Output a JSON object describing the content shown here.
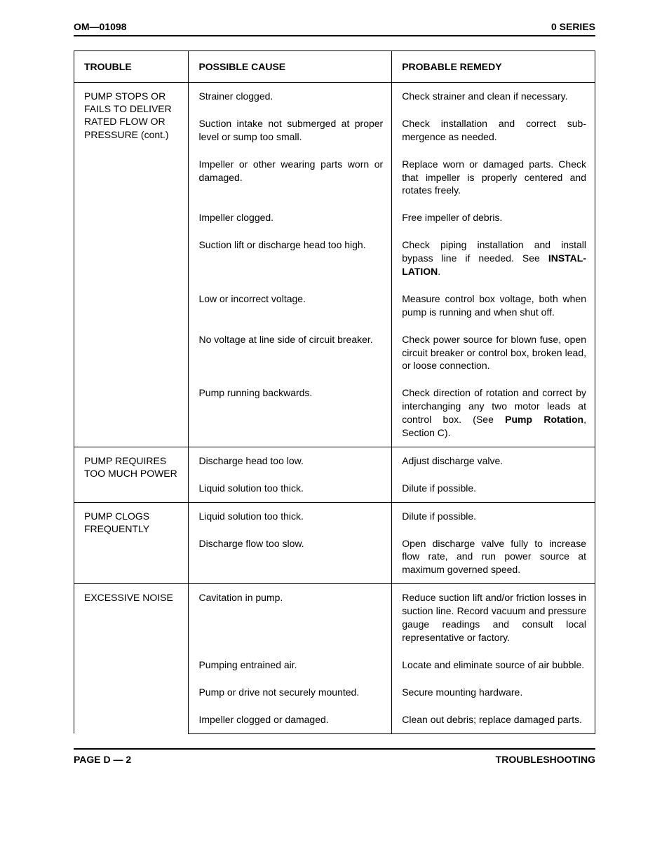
{
  "header": {
    "left": "OM—01098",
    "right": "0 SERIES"
  },
  "footer": {
    "left": "PAGE D — 2",
    "right": "TROUBLESHOOTING"
  },
  "colors": {
    "text": "#000000",
    "background": "#ffffff",
    "rule": "#000000"
  },
  "typography": {
    "base_fontsize_pt": 10.5,
    "header_fontsize_pt": 10.5,
    "font_family": "Arial"
  },
  "table": {
    "column_widths_pct": [
      22,
      39,
      39
    ],
    "headers": {
      "trouble": "TROUBLE",
      "cause": "POSSIBLE CAUSE",
      "remedy": "PROBABLE REMEDY"
    },
    "sections": [
      {
        "trouble": "PUMP STOPS OR FAILS TO DELIVER RATED FLOW OR PRESSURE (cont.)",
        "rows": [
          {
            "cause": "Strainer clogged.",
            "remedy": "Check strainer and clean if neces­sary."
          },
          {
            "cause": "Suction intake not submerged at proper level or sump too small.",
            "remedy": "Check installation and correct sub­mergence as needed."
          },
          {
            "cause": "Impeller or other wearing parts worn or damaged.",
            "remedy": "Replace worn or damaged parts. Check that impeller is properly centered and rotates freely."
          },
          {
            "cause": "Impeller clogged.",
            "remedy": "Free impeller of debris."
          },
          {
            "cause": "Suction lift or discharge head too high.",
            "remedy_pre": "Check piping installation and install bypass line if needed. See ",
            "remedy_bold": "INSTAL­LATION",
            "remedy_post": "."
          },
          {
            "cause": "Low or incorrect voltage.",
            "remedy": "Measure control box voltage, both when pump is running and when shut off."
          },
          {
            "cause": "No voltage at line side of circuit breaker.",
            "remedy": "Check power source for blown fuse, open circuit breaker or control box, broken lead, or loose connection."
          },
          {
            "cause": "Pump running backwards.",
            "remedy_pre": "Check direction of rotation and cor­rect by interchanging any two motor leads at control box. (See ",
            "remedy_bold": "Pump Ro­tation",
            "remedy_post": ", Section C)."
          }
        ]
      },
      {
        "trouble": "PUMP REQUIRES TOO MUCH POWER",
        "rows": [
          {
            "cause": "Discharge head too low.",
            "remedy": "Adjust discharge valve."
          },
          {
            "cause": "Liquid solution too thick.",
            "remedy": "Dilute if possible."
          }
        ]
      },
      {
        "trouble": "PUMP CLOGS FREQUENTLY",
        "rows": [
          {
            "cause": "Liquid solution too thick.",
            "remedy": "Dilute if possible."
          },
          {
            "cause": "Discharge flow too slow.",
            "remedy": "Open discharge valve fully to in­crease flow rate, and run power source at maximum governed speed."
          }
        ]
      },
      {
        "trouble": "EXCESSIVE NOISE",
        "rows": [
          {
            "cause": "Cavitation in pump.",
            "remedy": "Reduce suction lift and/or friction losses in suction line. Record vac­uum and pressure gauge readings and consult local representative or factory."
          },
          {
            "cause": "Pumping entrained air.",
            "remedy": "Locate and eliminate source of air bubble."
          },
          {
            "cause": "Pump or drive not securely mounted.",
            "remedy": "Secure mounting hardware."
          },
          {
            "cause": "Impeller clogged or damaged.",
            "remedy": "Clean out debris; replace dam­aged parts."
          }
        ]
      }
    ]
  }
}
